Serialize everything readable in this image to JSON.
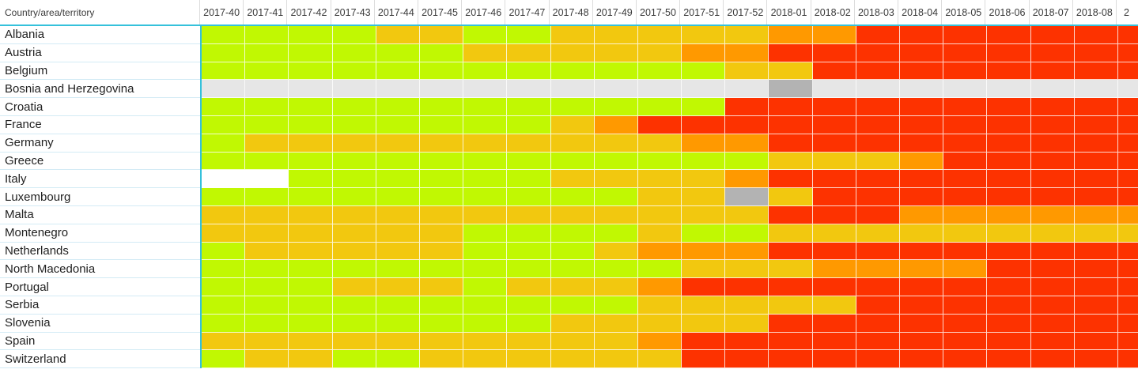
{
  "header": {
    "country_col_label": "Country/area/territory"
  },
  "ui": {
    "colors": {
      "accent_teal": "#35C1DB",
      "header_text": "#3B3B3B",
      "row_label_text": "#212121",
      "label_row_divider": "#D3EBF5",
      "header_divider": "#DCDCDC",
      "cell_gridline": "rgba(255,255,255,0.8)"
    }
  },
  "chart_data": {
    "type": "heatmap",
    "title": "",
    "xlabel": "",
    "ylabel": "Country/area/territory",
    "grid": true,
    "x_labels": [
      "2017-40",
      "2017-41",
      "2017-42",
      "2017-43",
      "2017-44",
      "2017-45",
      "2017-46",
      "2017-47",
      "2017-48",
      "2017-49",
      "2017-50",
      "2017-51",
      "2017-52",
      "2018-01",
      "2018-02",
      "2018-03",
      "2018-04",
      "2018-05",
      "2018-06",
      "2018-07",
      "2018-08",
      "2"
    ],
    "last_column_clipped": true,
    "rows": [
      "Albania",
      "Austria",
      "Belgium",
      "Bosnia and Herzegovina",
      "Croatia",
      "France",
      "Germany",
      "Greece",
      "Italy",
      "Luxembourg",
      "Malta",
      "Montenegro",
      "Netherlands",
      "North Macedonia",
      "Portugal",
      "Serbia",
      "Slovenia",
      "Spain",
      "Switzerland"
    ],
    "values": [
      [
        "G",
        "G",
        "G",
        "G",
        "Y",
        "Y",
        "G",
        "G",
        "Y",
        "Y",
        "Y",
        "Y",
        "Y",
        "O",
        "O",
        "R",
        "R",
        "R",
        "R",
        "R",
        "R",
        "R"
      ],
      [
        "G",
        "G",
        "G",
        "G",
        "G",
        "G",
        "Y",
        "Y",
        "Y",
        "Y",
        "Y",
        "O",
        "O",
        "R",
        "R",
        "R",
        "R",
        "R",
        "R",
        "R",
        "R",
        "R"
      ],
      [
        "G",
        "G",
        "G",
        "G",
        "G",
        "G",
        "G",
        "G",
        "G",
        "G",
        "G",
        "G",
        "Y",
        "Y",
        "R",
        "R",
        "R",
        "R",
        "R",
        "R",
        "R",
        "R"
      ],
      [
        "LG",
        "LG",
        "LG",
        "LG",
        "LG",
        "LG",
        "LG",
        "LG",
        "LG",
        "LG",
        "LG",
        "LG",
        "LG",
        "DG",
        "LG",
        "LG",
        "LG",
        "LG",
        "LG",
        "LG",
        "LG",
        "LG"
      ],
      [
        "G",
        "G",
        "G",
        "G",
        "G",
        "G",
        "G",
        "G",
        "G",
        "G",
        "G",
        "G",
        "R",
        "R",
        "R",
        "R",
        "R",
        "R",
        "R",
        "R",
        "R",
        "R"
      ],
      [
        "G",
        "G",
        "G",
        "G",
        "G",
        "G",
        "G",
        "G",
        "Y",
        "O",
        "R",
        "R",
        "R",
        "R",
        "R",
        "R",
        "R",
        "R",
        "R",
        "R",
        "R",
        "R"
      ],
      [
        "G",
        "Y",
        "Y",
        "Y",
        "Y",
        "Y",
        "Y",
        "Y",
        "Y",
        "Y",
        "Y",
        "O",
        "O",
        "R",
        "R",
        "R",
        "R",
        "R",
        "R",
        "R",
        "R",
        "R"
      ],
      [
        "G",
        "G",
        "G",
        "G",
        "G",
        "G",
        "G",
        "G",
        "G",
        "G",
        "G",
        "G",
        "G",
        "Y",
        "Y",
        "Y",
        "O",
        "R",
        "R",
        "R",
        "R",
        "R"
      ],
      [
        "W",
        "W",
        "G",
        "G",
        "G",
        "G",
        "G",
        "G",
        "Y",
        "Y",
        "Y",
        "Y",
        "O",
        "R",
        "R",
        "R",
        "R",
        "R",
        "R",
        "R",
        "R",
        "R"
      ],
      [
        "G",
        "G",
        "G",
        "G",
        "G",
        "G",
        "G",
        "G",
        "G",
        "G",
        "Y",
        "Y",
        "DG",
        "Y",
        "R",
        "R",
        "R",
        "R",
        "R",
        "R",
        "R",
        "R"
      ],
      [
        "Y",
        "Y",
        "Y",
        "Y",
        "Y",
        "Y",
        "Y",
        "Y",
        "Y",
        "Y",
        "Y",
        "Y",
        "Y",
        "R",
        "R",
        "R",
        "O",
        "O",
        "O",
        "O",
        "O",
        "O"
      ],
      [
        "Y",
        "Y",
        "Y",
        "Y",
        "Y",
        "Y",
        "G",
        "G",
        "G",
        "G",
        "Y",
        "G",
        "G",
        "Y",
        "Y",
        "Y",
        "Y",
        "Y",
        "Y",
        "Y",
        "Y",
        "Y"
      ],
      [
        "G",
        "Y",
        "Y",
        "Y",
        "Y",
        "Y",
        "G",
        "G",
        "G",
        "Y",
        "O",
        "O",
        "O",
        "R",
        "R",
        "R",
        "R",
        "R",
        "R",
        "R",
        "R",
        "R"
      ],
      [
        "G",
        "G",
        "G",
        "G",
        "G",
        "G",
        "G",
        "G",
        "G",
        "G",
        "G",
        "Y",
        "Y",
        "Y",
        "O",
        "O",
        "O",
        "O",
        "R",
        "R",
        "R",
        "R"
      ],
      [
        "G",
        "G",
        "G",
        "Y",
        "Y",
        "Y",
        "G",
        "Y",
        "Y",
        "Y",
        "O",
        "R",
        "R",
        "R",
        "R",
        "R",
        "R",
        "R",
        "R",
        "R",
        "R",
        "R"
      ],
      [
        "G",
        "G",
        "G",
        "G",
        "G",
        "G",
        "G",
        "G",
        "G",
        "G",
        "Y",
        "Y",
        "Y",
        "Y",
        "Y",
        "R",
        "R",
        "R",
        "R",
        "R",
        "R",
        "R"
      ],
      [
        "G",
        "G",
        "G",
        "G",
        "G",
        "G",
        "G",
        "G",
        "Y",
        "Y",
        "Y",
        "Y",
        "Y",
        "R",
        "R",
        "R",
        "R",
        "R",
        "R",
        "R",
        "R",
        "R"
      ],
      [
        "Y",
        "Y",
        "Y",
        "Y",
        "Y",
        "Y",
        "Y",
        "Y",
        "Y",
        "Y",
        "O",
        "R",
        "R",
        "R",
        "R",
        "R",
        "R",
        "R",
        "R",
        "R",
        "R",
        "R"
      ],
      [
        "G",
        "Y",
        "Y",
        "G",
        "G",
        "Y",
        "Y",
        "Y",
        "Y",
        "Y",
        "Y",
        "R",
        "R",
        "R",
        "R",
        "R",
        "R",
        "R",
        "R",
        "R",
        "R",
        "R"
      ]
    ],
    "palette": {
      "G": "#C1F802",
      "Y": "#F2C80F",
      "O": "#FF9900",
      "R": "#FD3200",
      "LG": "#E6E6E6",
      "DG": "#B3B3B3",
      "W": "#FFFFFF"
    }
  }
}
